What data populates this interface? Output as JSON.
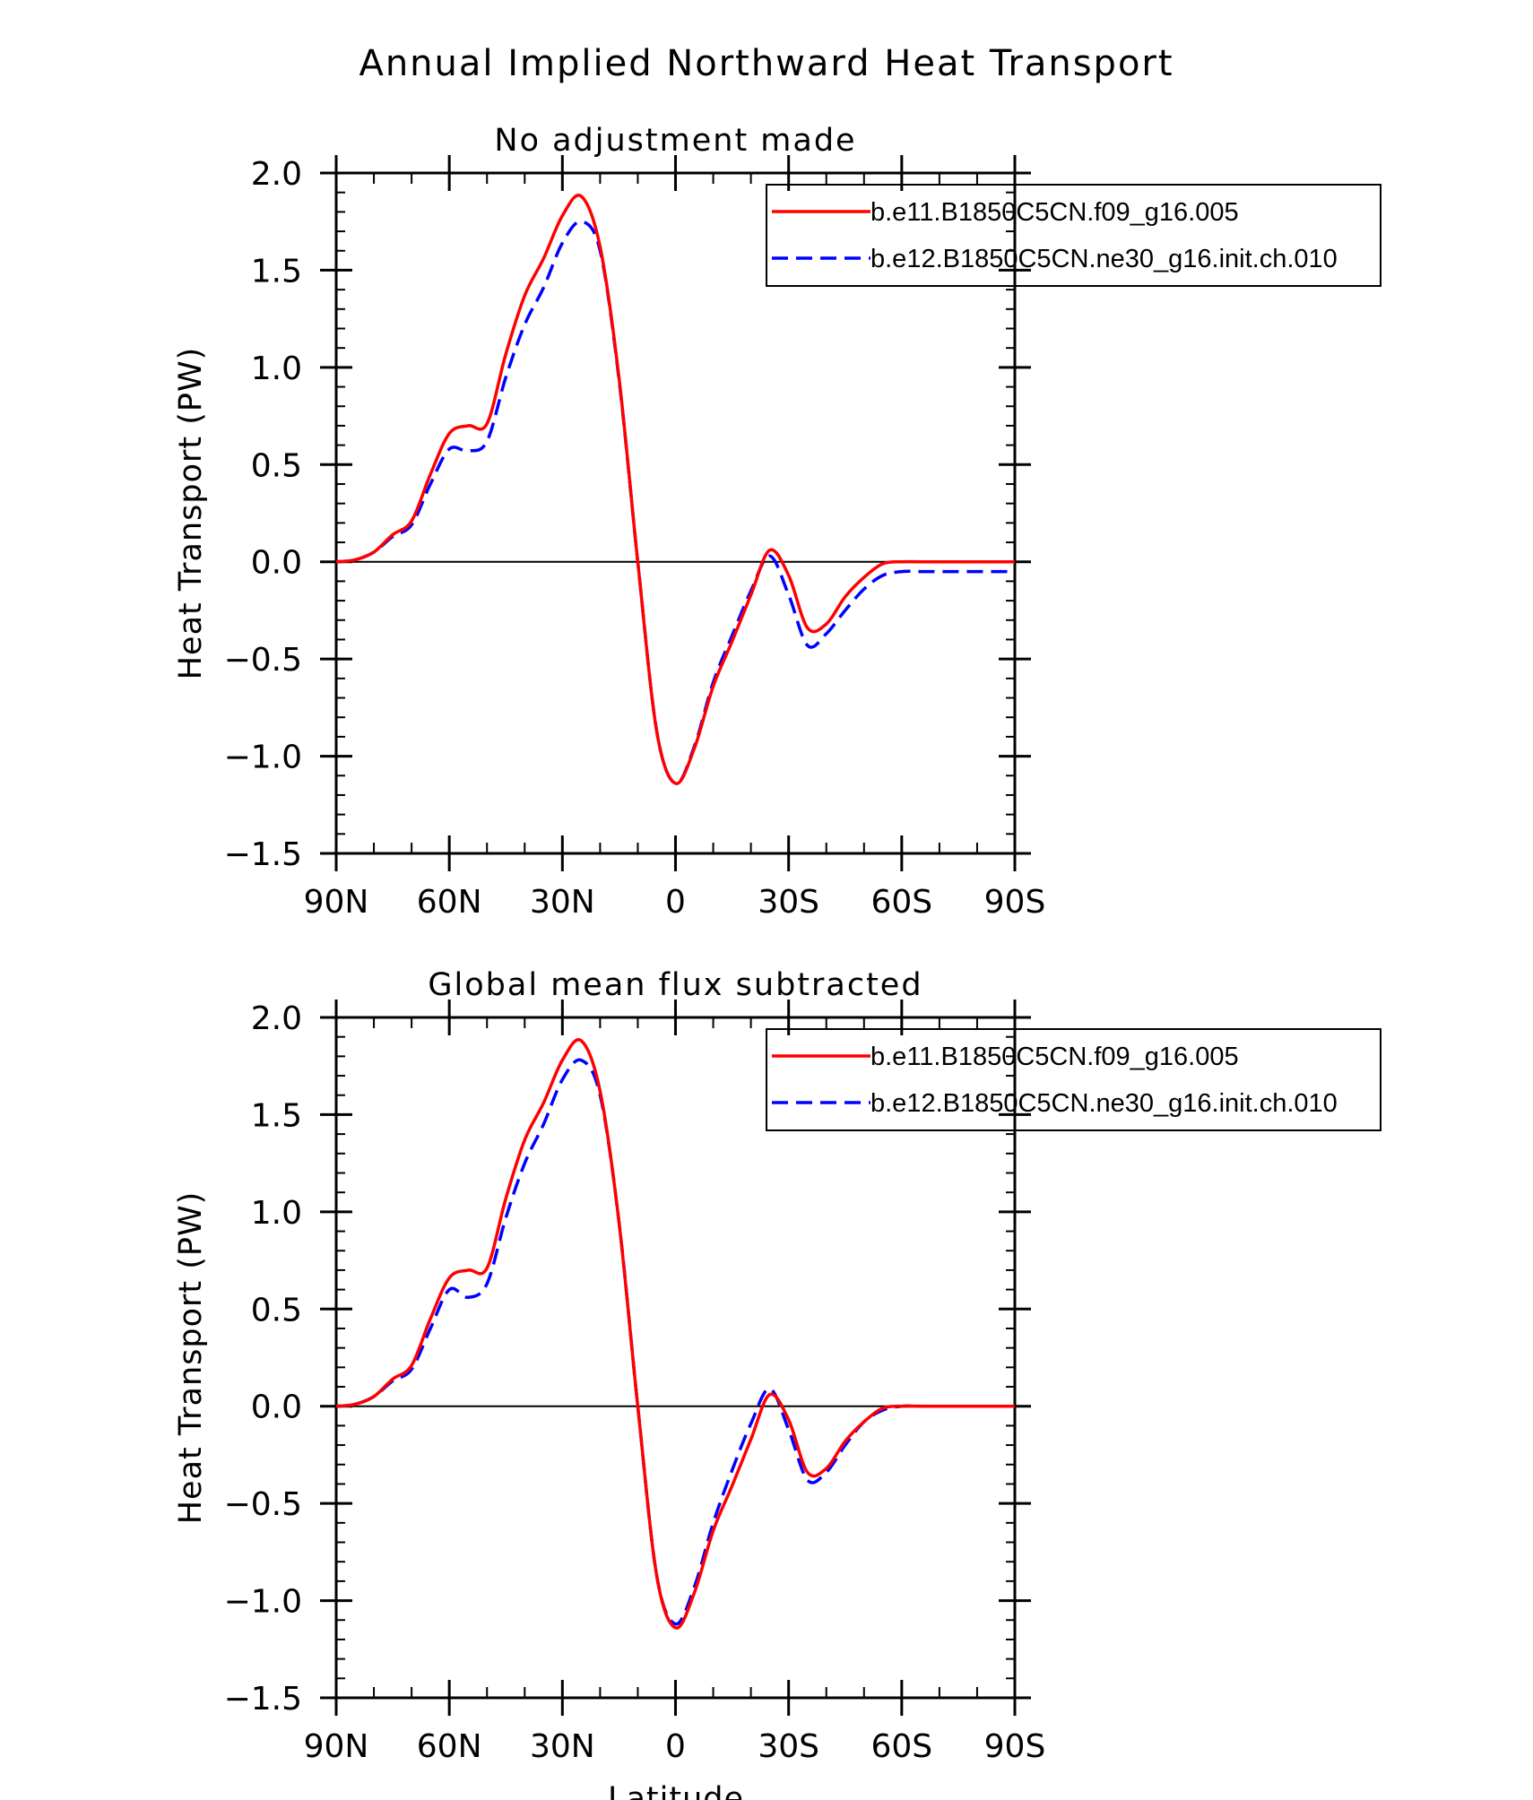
{
  "figure": {
    "title": "Annual Implied Northward Heat Transport",
    "xlabel": "Latitude",
    "colors": {
      "series_1": "#ff0000",
      "series_2": "#0000ff"
    }
  },
  "chart_data": [
    {
      "type": "line",
      "title": "No adjustment made",
      "xlabel": "",
      "ylabel": "Heat Transport (PW)",
      "xlim": [
        90,
        -90
      ],
      "ylim": [
        -1.5,
        2.0
      ],
      "x_tick_values": [
        90,
        60,
        30,
        0,
        -30,
        -60,
        -90
      ],
      "x_tick_labels": [
        "90N",
        "60N",
        "30N",
        "0",
        "30S",
        "60S",
        "90S"
      ],
      "y_tick_values": [
        2.0,
        1.5,
        1.0,
        0.5,
        0.0,
        -0.5,
        -1.0,
        -1.5
      ],
      "y_tick_labels": [
        "2.0",
        "1.5",
        "1.0",
        "0.5",
        "0.0",
        "−0.5",
        "−1.0",
        "−1.5"
      ],
      "grid": false,
      "zero_line": true,
      "legend_position": "top-right",
      "series": [
        {
          "name": "b.e11.B1850C5CN.f09_g16.005",
          "color": "#ff0000",
          "dash": "solid",
          "x": [
            90,
            85,
            80,
            75,
            70,
            65,
            60,
            55,
            50,
            45,
            40,
            35,
            30,
            25,
            20,
            15,
            10,
            5,
            0,
            -5,
            -10,
            -15,
            -20,
            -25,
            -30,
            -35,
            -40,
            -45,
            -50,
            -55,
            -60,
            -65,
            -70,
            -75,
            -80,
            -85,
            -90
          ],
          "values": [
            0.0,
            0.01,
            0.05,
            0.14,
            0.21,
            0.45,
            0.66,
            0.7,
            0.71,
            1.07,
            1.37,
            1.56,
            1.78,
            1.88,
            1.62,
            0.95,
            0.0,
            -0.87,
            -1.14,
            -0.96,
            -0.64,
            -0.41,
            -0.17,
            0.06,
            -0.07,
            -0.34,
            -0.32,
            -0.18,
            -0.08,
            -0.01,
            0.0,
            0.0,
            0.0,
            0.0,
            0.0,
            0.0,
            0.0
          ]
        },
        {
          "name": "b.e12.B1850C5CN.ne30_g16.init.ch.010",
          "color": "#0000ff",
          "dash": "dashed",
          "x": [
            90,
            85,
            80,
            75,
            70,
            65,
            60,
            55,
            50,
            45,
            40,
            35,
            30,
            25,
            20,
            15,
            10,
            5,
            0,
            -5,
            -10,
            -15,
            -20,
            -25,
            -30,
            -35,
            -40,
            -45,
            -50,
            -55,
            -60,
            -65,
            -70,
            -75,
            -80,
            -85,
            -90
          ],
          "values": [
            0.0,
            0.01,
            0.05,
            0.13,
            0.19,
            0.4,
            0.58,
            0.57,
            0.62,
            0.95,
            1.22,
            1.41,
            1.64,
            1.75,
            1.6,
            0.94,
            0.0,
            -0.87,
            -1.14,
            -0.95,
            -0.62,
            -0.38,
            -0.15,
            0.03,
            -0.17,
            -0.43,
            -0.37,
            -0.25,
            -0.14,
            -0.07,
            -0.05,
            -0.05,
            -0.05,
            -0.05,
            -0.05,
            -0.05,
            -0.05
          ]
        }
      ]
    },
    {
      "type": "line",
      "title": "Global mean flux subtracted",
      "xlabel": "Latitude",
      "ylabel": "Heat Transport (PW)",
      "xlim": [
        90,
        -90
      ],
      "ylim": [
        -1.5,
        2.0
      ],
      "x_tick_values": [
        90,
        60,
        30,
        0,
        -30,
        -60,
        -90
      ],
      "x_tick_labels": [
        "90N",
        "60N",
        "30N",
        "0",
        "30S",
        "60S",
        "90S"
      ],
      "y_tick_values": [
        2.0,
        1.5,
        1.0,
        0.5,
        0.0,
        -0.5,
        -1.0,
        -1.5
      ],
      "y_tick_labels": [
        "2.0",
        "1.5",
        "1.0",
        "0.5",
        "0.0",
        "−0.5",
        "−1.0",
        "−1.5"
      ],
      "grid": false,
      "zero_line": true,
      "legend_position": "top-right",
      "series": [
        {
          "name": "b.e11.B1850C5CN.f09_g16.005",
          "color": "#ff0000",
          "dash": "solid",
          "x": [
            90,
            85,
            80,
            75,
            70,
            65,
            60,
            55,
            50,
            45,
            40,
            35,
            30,
            25,
            20,
            15,
            10,
            5,
            0,
            -5,
            -10,
            -15,
            -20,
            -25,
            -30,
            -35,
            -40,
            -45,
            -50,
            -55,
            -60,
            -65,
            -70,
            -75,
            -80,
            -85,
            -90
          ],
          "values": [
            0.0,
            0.01,
            0.05,
            0.14,
            0.21,
            0.45,
            0.66,
            0.7,
            0.71,
            1.07,
            1.37,
            1.56,
            1.78,
            1.88,
            1.62,
            0.95,
            0.0,
            -0.87,
            -1.14,
            -0.96,
            -0.64,
            -0.41,
            -0.17,
            0.06,
            -0.07,
            -0.34,
            -0.32,
            -0.18,
            -0.08,
            -0.01,
            0.0,
            0.0,
            0.0,
            0.0,
            0.0,
            0.0,
            0.0
          ]
        },
        {
          "name": "b.e12.B1850C5CN.ne30_g16.init.ch.010",
          "color": "#0000ff",
          "dash": "dashed",
          "x": [
            90,
            85,
            80,
            75,
            70,
            65,
            60,
            55,
            50,
            45,
            40,
            35,
            30,
            25,
            20,
            15,
            10,
            5,
            0,
            -5,
            -10,
            -15,
            -20,
            -25,
            -30,
            -35,
            -40,
            -45,
            -50,
            -55,
            -60,
            -65,
            -70,
            -75,
            -80,
            -85,
            -90
          ],
          "values": [
            0.0,
            0.01,
            0.05,
            0.13,
            0.19,
            0.4,
            0.6,
            0.56,
            0.63,
            0.97,
            1.25,
            1.45,
            1.68,
            1.78,
            1.6,
            0.95,
            0.0,
            -0.87,
            -1.12,
            -0.93,
            -0.6,
            -0.33,
            -0.09,
            0.09,
            -0.12,
            -0.38,
            -0.34,
            -0.2,
            -0.08,
            -0.02,
            0.0,
            0.0,
            0.0,
            0.0,
            0.0,
            0.0,
            0.0
          ]
        }
      ]
    }
  ]
}
